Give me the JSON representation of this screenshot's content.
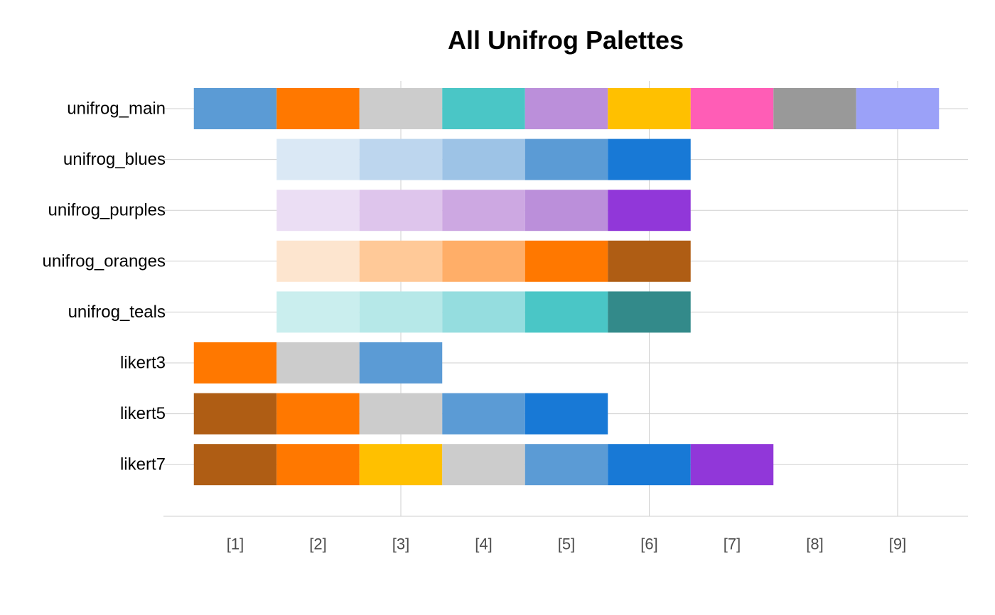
{
  "chart_data": {
    "type": "heatmap",
    "title": "All Unifrog Palettes",
    "xlabel": "",
    "ylabel": "",
    "x_tick_labels": [
      "[1]",
      "[2]",
      "[3]",
      "[4]",
      "[5]",
      "[6]",
      "[7]",
      "[8]",
      "[9]"
    ],
    "grid": true,
    "legend": "none",
    "palettes": [
      {
        "name": "unifrog_main",
        "start": 1,
        "colors": [
          "#5B9BD5",
          "#FF7800",
          "#CCCCCC",
          "#4AC6C6",
          "#BB8FDA",
          "#FFC000",
          "#FF5DB6",
          "#999999",
          "#9BA1F8"
        ]
      },
      {
        "name": "unifrog_blues",
        "start": 2,
        "colors": [
          "#DAE8F5",
          "#BDD6EE",
          "#9DC3E6",
          "#5B9BD5",
          "#1879D6"
        ]
      },
      {
        "name": "unifrog_purples",
        "start": 2,
        "colors": [
          "#EBDEF4",
          "#DEC5EC",
          "#CDA8E2",
          "#BB8FDA",
          "#9137D9"
        ]
      },
      {
        "name": "unifrog_oranges",
        "start": 2,
        "colors": [
          "#FDE5CF",
          "#FFC998",
          "#FFAE68",
          "#FF7800",
          "#AF5D14"
        ]
      },
      {
        "name": "unifrog_teals",
        "start": 2,
        "colors": [
          "#CAEEEE",
          "#B6E8E8",
          "#95DDDF",
          "#4AC6C6",
          "#338A8A"
        ]
      },
      {
        "name": "likert3",
        "start": 1,
        "colors": [
          "#FF7800",
          "#CCCCCC",
          "#5B9BD5"
        ]
      },
      {
        "name": "likert5",
        "start": 1,
        "colors": [
          "#AF5D14",
          "#FF7800",
          "#CCCCCC",
          "#5B9BD5",
          "#1879D6"
        ]
      },
      {
        "name": "likert7",
        "start": 1,
        "colors": [
          "#AF5D14",
          "#FF7800",
          "#FFC000",
          "#CCCCCC",
          "#5B9BD5",
          "#1879D6",
          "#9137D9"
        ]
      }
    ]
  }
}
